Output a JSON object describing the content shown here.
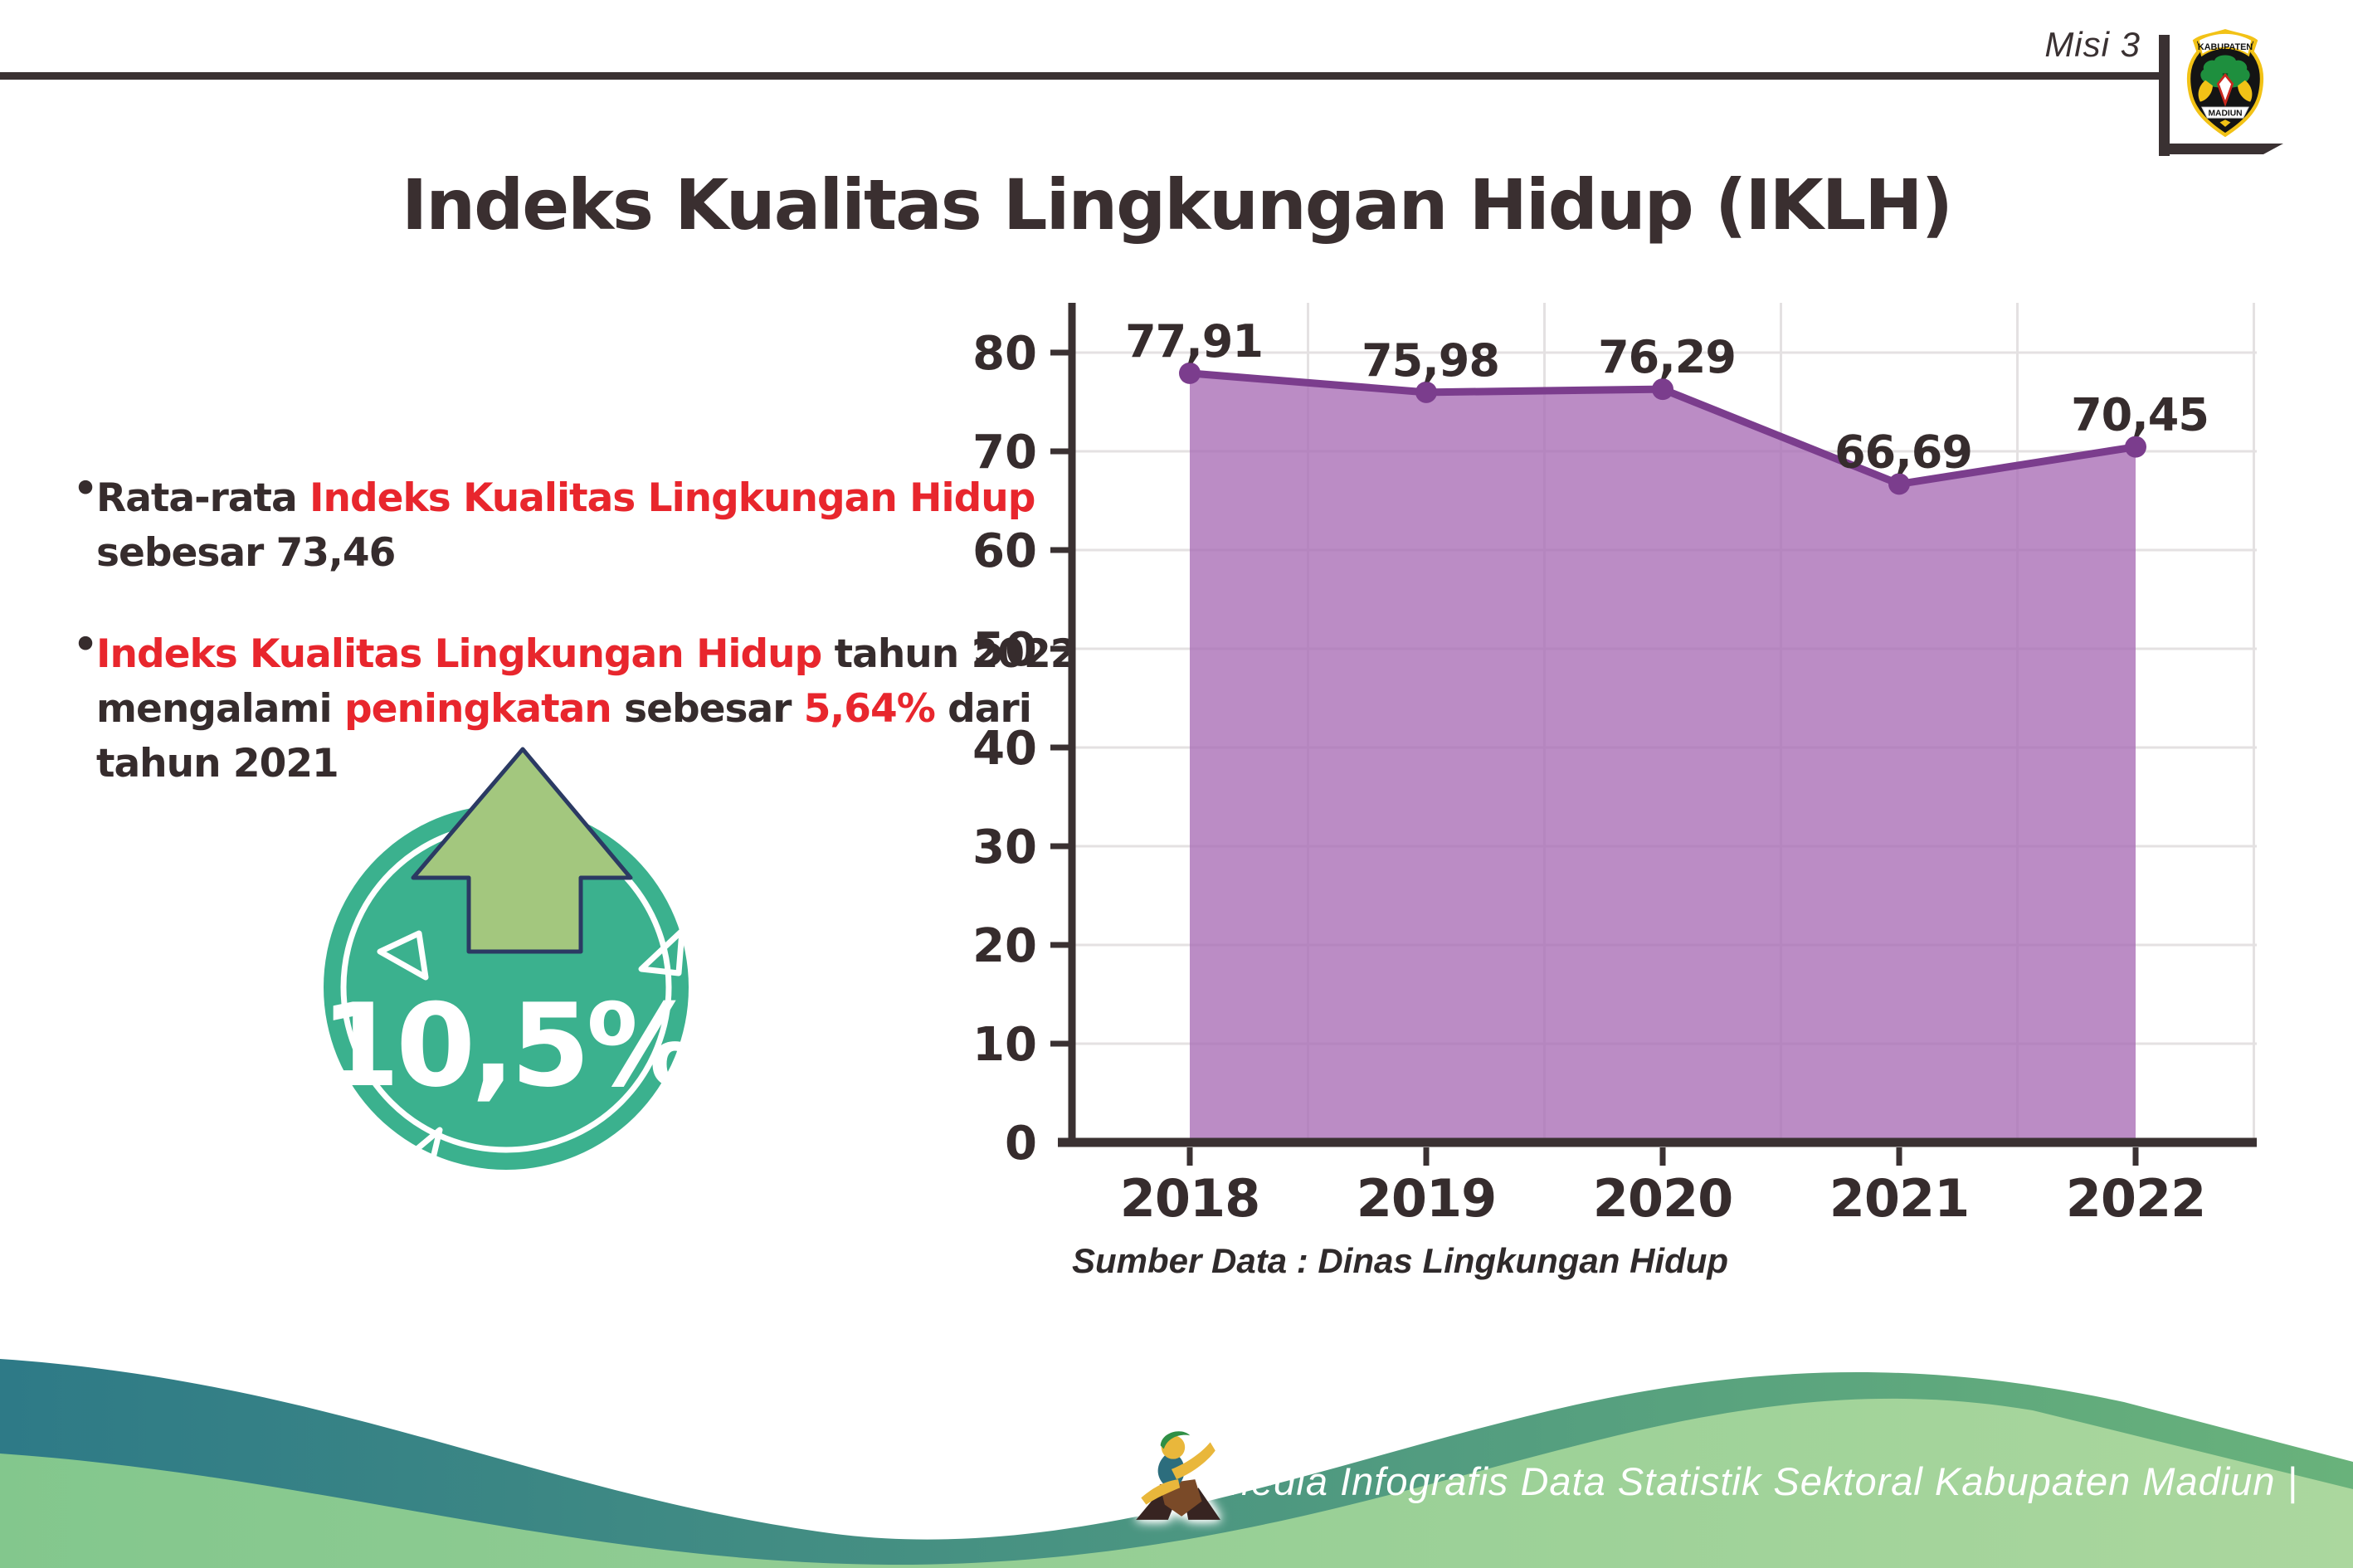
{
  "header": {
    "misi_label": "Misi 3",
    "title": "Indeks Kualitas Lingkungan Hidup (IKLH)",
    "logo": {
      "top_text": "KABUPATEN",
      "bottom_text": "MADIUN"
    }
  },
  "insights": {
    "bullet_char": "•",
    "b1": {
      "seg_dark1": "Rata-rata ",
      "seg_red1": "Indeks Kualitas Lingkungan Hidup",
      "line2": "sebesar 73,46"
    },
    "b2": {
      "seg_red1": "Indeks Kualitas Lingkungan Hidup",
      "seg_dark1": " tahun 2022",
      "l2_dark1": "mengalami ",
      "l2_red1": "peningkatan",
      "l2_dark2": " sebesar ",
      "l2_red2": "5,64%",
      "l2_dark3": " dari",
      "line3": "tahun 2021"
    }
  },
  "badge": {
    "value": "10,5%"
  },
  "chart_data": {
    "type": "area",
    "x": [
      "2018",
      "2019",
      "2020",
      "2021",
      "2022"
    ],
    "series": [
      {
        "name": "IKLH",
        "values": [
          77.91,
          75.98,
          76.29,
          66.69,
          70.45
        ]
      }
    ],
    "point_labels": [
      "77,91",
      "75,98",
      "76,29",
      "66,69",
      "70,45"
    ],
    "yticks": [
      0,
      10,
      20,
      30,
      40,
      50,
      60,
      70,
      80
    ],
    "ylim": [
      0,
      80
    ],
    "grid": true,
    "legend": false,
    "title": "",
    "xlabel": "",
    "ylabel": "",
    "area_color": "#a86bb5",
    "line_color": "#7b3d8d",
    "axis_color": "#3a3132",
    "grid_color": "#e4e1e2"
  },
  "source": {
    "label": "Sumber Data : Dinas Lingkungan Hidup"
  },
  "footer": {
    "caption": "Media Infografis Data Statistik Sektoral Kabupaten Madiun |"
  },
  "colors": {
    "accent_red": "#e8262d",
    "text_dark": "#362c2d",
    "badge_teal": "#3bb18e",
    "arrow_green": "#a3c77e",
    "arrow_outline": "#2b3a63",
    "wave_teal_start": "#2e7a87",
    "wave_teal_end": "#69b27b",
    "wave_green_start": "#83c78d",
    "wave_green_end": "#abd79e"
  }
}
